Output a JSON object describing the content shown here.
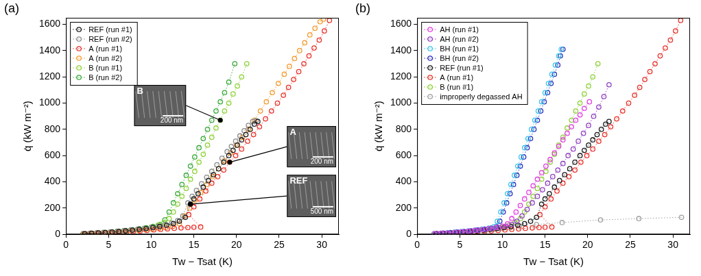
{
  "chart_data": [
    {
      "type": "line",
      "panel": "(a)",
      "x_label": "Tw − Tsat (K)",
      "y_label": "q̇ (kW m⁻²)",
      "xlim": [
        0,
        32
      ],
      "ylim": [
        0,
        1650
      ],
      "xticks": [
        0,
        5,
        10,
        15,
        20,
        25,
        30
      ],
      "yticks": [
        0,
        200,
        400,
        600,
        800,
        1000,
        1200,
        1400,
        1600
      ],
      "grid": false,
      "legend": "top-left",
      "marker": "circle",
      "line_style": "dotted",
      "series": [
        {
          "name": "REF (run #1)",
          "color": "#1a1a1a",
          "x": [
            2.2,
            3.0,
            3.8,
            4.6,
            5.4,
            6.2,
            7.0,
            7.8,
            8.6,
            9.4,
            10.2,
            11.0,
            11.8,
            12.6,
            13.3,
            14.0,
            14.6,
            15.0,
            15.5,
            16.1,
            16.7,
            17.3,
            17.9,
            18.5,
            19.1,
            19.6,
            20.1,
            20.6,
            21.1,
            21.6,
            22.1,
            22.5
          ],
          "values": [
            5,
            8,
            11,
            14,
            18,
            22,
            27,
            32,
            38,
            44,
            52,
            60,
            70,
            82,
            100,
            130,
            230,
            270,
            310,
            360,
            410,
            455,
            500,
            550,
            600,
            640,
            680,
            720,
            760,
            800,
            840,
            860
          ]
        },
        {
          "name": "REF (run #2)",
          "color": "#8c8c8c",
          "x": [
            2.0,
            2.8,
            3.6,
            4.4,
            5.2,
            6.0,
            6.8,
            7.6,
            8.4,
            9.2,
            10.0,
            10.8,
            11.6,
            12.4,
            13.1,
            13.7,
            14.3,
            14.8,
            15.3,
            15.9,
            16.5,
            17.1,
            17.7,
            18.3,
            18.9,
            19.4,
            19.9,
            20.4,
            20.9,
            21.4,
            21.9,
            22.3
          ],
          "values": [
            6,
            9,
            12,
            15,
            19,
            24,
            29,
            34,
            40,
            46,
            54,
            62,
            72,
            85,
            105,
            140,
            240,
            290,
            335,
            385,
            435,
            480,
            530,
            580,
            630,
            670,
            710,
            750,
            790,
            830,
            860,
            865
          ]
        },
        {
          "name": "A (run #1)",
          "color": "#e8322a",
          "x": [
            2.3,
            3.1,
            3.9,
            4.7,
            5.5,
            6.3,
            7.1,
            7.9,
            8.7,
            9.5,
            10.3,
            11.1,
            11.9,
            12.7,
            13.5,
            14.3,
            15.0,
            15.8,
            14.4,
            15.0,
            15.7,
            16.4,
            17.1,
            17.8,
            18.5,
            19.2,
            19.9,
            20.6,
            21.3,
            22.0,
            22.7,
            23.4,
            24.1,
            24.8,
            25.5,
            26.1,
            26.7,
            27.3,
            27.9,
            28.5,
            29.1,
            29.7,
            30.3,
            30.9
          ],
          "values": [
            5,
            7,
            9,
            11,
            13,
            16,
            19,
            22,
            26,
            30,
            34,
            38,
            42,
            46,
            49,
            52,
            54,
            56,
            150,
            210,
            270,
            330,
            390,
            440,
            490,
            550,
            600,
            650,
            710,
            760,
            820,
            880,
            940,
            1000,
            1060,
            1120,
            1180,
            1240,
            1300,
            1360,
            1420,
            1480,
            1550,
            1630
          ]
        },
        {
          "name": "A (run #2)",
          "color": "#f39a2e",
          "x": [
            2.1,
            2.9,
            3.7,
            4.5,
            5.3,
            6.1,
            6.9,
            7.7,
            8.5,
            9.3,
            10.1,
            10.9,
            11.7,
            12.5,
            13.3,
            13.9,
            14.5,
            15.1,
            15.8,
            16.5,
            17.2,
            17.9,
            18.6,
            19.3,
            20.0,
            20.7,
            21.4,
            22.1,
            22.8,
            23.5,
            24.2,
            24.9,
            25.6,
            26.2,
            26.8,
            27.4,
            28.0,
            28.6,
            29.2,
            29.8,
            30.2
          ],
          "values": [
            5,
            7,
            9,
            12,
            15,
            18,
            22,
            26,
            30,
            35,
            40,
            45,
            52,
            60,
            80,
            140,
            200,
            260,
            320,
            380,
            440,
            500,
            560,
            620,
            680,
            740,
            800,
            870,
            940,
            1010,
            1080,
            1150,
            1220,
            1280,
            1340,
            1400,
            1460,
            1520,
            1570,
            1620,
            1640
          ]
        },
        {
          "name": "B (run #1)",
          "color": "#8fd13a",
          "x": [
            2.0,
            2.8,
            3.6,
            4.4,
            5.2,
            6.0,
            6.8,
            7.6,
            8.4,
            9.2,
            10.0,
            10.8,
            11.5,
            12.1,
            12.6,
            13.1,
            13.6,
            14.1,
            14.6,
            15.1,
            15.6,
            16.1,
            16.6,
            17.1,
            17.6,
            18.1,
            18.6,
            19.1,
            19.6,
            20.1,
            20.6,
            21.2
          ],
          "values": [
            5,
            8,
            11,
            14,
            18,
            22,
            27,
            32,
            38,
            45,
            55,
            70,
            90,
            120,
            170,
            230,
            290,
            350,
            420,
            480,
            550,
            610,
            680,
            740,
            810,
            870,
            940,
            1000,
            1070,
            1130,
            1200,
            1300
          ]
        },
        {
          "name": "B (run #2)",
          "color": "#38a838",
          "x": [
            2.2,
            3.0,
            3.8,
            4.6,
            5.4,
            6.2,
            7.0,
            7.8,
            8.6,
            9.4,
            10.2,
            11.0,
            11.6,
            12.1,
            12.6,
            13.1,
            13.6,
            14.1,
            14.6,
            15.1,
            15.6,
            16.1,
            16.6,
            17.1,
            17.6,
            18.1,
            18.6,
            19.1,
            19.8
          ],
          "values": [
            5,
            8,
            11,
            15,
            19,
            24,
            29,
            35,
            42,
            50,
            60,
            75,
            110,
            170,
            240,
            310,
            380,
            450,
            520,
            590,
            660,
            730,
            800,
            870,
            940,
            1010,
            1080,
            1160,
            1300
          ]
        }
      ],
      "annotations": [
        {
          "label": "B",
          "scale_bar": "200 nm",
          "x": 18.1,
          "y": 870
        },
        {
          "label": "A",
          "scale_bar": "200 nm",
          "x": 19.2,
          "y": 550
        },
        {
          "label": "REF",
          "scale_bar": "500 nm",
          "x": 14.6,
          "y": 230
        }
      ]
    },
    {
      "type": "line",
      "panel": "(b)",
      "x_label": "Tw − Tsat (K)",
      "y_label": "q̇ (kW m⁻²)",
      "xlim": [
        0,
        32
      ],
      "ylim": [
        0,
        1650
      ],
      "xticks": [
        0,
        5,
        10,
        15,
        20,
        25,
        30
      ],
      "yticks": [
        0,
        200,
        400,
        600,
        800,
        1000,
        1200,
        1400,
        1600
      ],
      "grid": false,
      "legend": "top-left",
      "marker": "circle",
      "line_style": "dotted",
      "series": [
        {
          "name": "AH (run #1)",
          "color": "#e040e0",
          "x": [
            2.0,
            2.8,
            3.6,
            4.4,
            5.2,
            6.0,
            6.8,
            7.6,
            8.4,
            9.2,
            10.0,
            10.6,
            11.1,
            11.6,
            12.1,
            12.6,
            13.1,
            13.6,
            14.1,
            14.6,
            15.1,
            15.6,
            16.1,
            16.6,
            17.1,
            17.6,
            18.1,
            18.6,
            19.1,
            19.6,
            20.2
          ],
          "values": [
            5,
            8,
            11,
            15,
            19,
            24,
            30,
            36,
            44,
            52,
            62,
            80,
            120,
            170,
            220,
            270,
            320,
            370,
            420,
            470,
            520,
            570,
            620,
            670,
            720,
            770,
            820,
            870,
            910,
            960,
            1010
          ]
        },
        {
          "name": "AH (run #2)",
          "color": "#9040c0",
          "x": [
            2.4,
            3.2,
            4.0,
            4.8,
            5.6,
            6.4,
            7.2,
            8.0,
            8.8,
            9.6,
            10.4,
            11.1,
            11.7,
            12.3,
            12.9,
            13.5,
            14.1,
            14.7,
            15.3,
            15.9,
            16.5,
            17.1,
            17.7,
            18.3,
            18.9,
            19.5,
            20.1,
            20.7,
            21.3,
            21.9,
            22.5
          ],
          "values": [
            5,
            8,
            11,
            15,
            19,
            24,
            30,
            36,
            44,
            52,
            62,
            75,
            100,
            140,
            190,
            240,
            290,
            340,
            390,
            440,
            490,
            540,
            600,
            650,
            710,
            770,
            830,
            900,
            970,
            1050,
            1140
          ]
        },
        {
          "name": "BH (run #1)",
          "color": "#3cc4e8",
          "x": [
            2.0,
            2.8,
            3.6,
            4.4,
            5.2,
            6.0,
            6.8,
            7.6,
            8.4,
            9.0,
            9.4,
            9.8,
            10.2,
            10.6,
            11.0,
            11.4,
            11.8,
            12.2,
            12.6,
            13.0,
            13.4,
            13.8,
            14.2,
            14.6,
            15.0,
            15.4,
            15.8,
            16.2,
            16.6,
            16.9
          ],
          "values": [
            5,
            9,
            13,
            17,
            22,
            27,
            33,
            40,
            48,
            58,
            100,
            170,
            240,
            310,
            380,
            450,
            520,
            590,
            660,
            730,
            800,
            870,
            940,
            1010,
            1080,
            1150,
            1220,
            1290,
            1360,
            1410
          ]
        },
        {
          "name": "BH (run #2)",
          "color": "#2e2ec0",
          "x": [
            2.3,
            3.1,
            3.9,
            4.7,
            5.5,
            6.3,
            7.1,
            7.9,
            8.7,
            9.3,
            9.7,
            10.1,
            10.5,
            10.9,
            11.3,
            11.7,
            12.1,
            12.5,
            12.9,
            13.3,
            13.7,
            14.1,
            14.5,
            14.9,
            15.3,
            15.7,
            16.1,
            16.5,
            16.8,
            17.1
          ],
          "values": [
            5,
            9,
            13,
            17,
            22,
            27,
            33,
            40,
            48,
            58,
            100,
            170,
            240,
            310,
            380,
            450,
            520,
            590,
            660,
            730,
            800,
            870,
            940,
            1010,
            1080,
            1150,
            1220,
            1290,
            1360,
            1410
          ]
        },
        {
          "name": "REF (run #1)",
          "color": "#1a1a1a",
          "x": [
            2.2,
            3.0,
            3.8,
            4.6,
            5.4,
            6.2,
            7.0,
            7.8,
            8.6,
            9.4,
            10.2,
            11.0,
            11.8,
            12.6,
            13.3,
            14.0,
            14.6,
            15.0,
            15.5,
            16.1,
            16.7,
            17.3,
            17.9,
            18.5,
            19.1,
            19.6,
            20.1,
            20.6,
            21.1,
            21.6,
            22.1,
            22.5
          ],
          "values": [
            5,
            8,
            11,
            14,
            18,
            22,
            27,
            32,
            38,
            44,
            52,
            60,
            70,
            82,
            100,
            130,
            230,
            270,
            310,
            360,
            410,
            455,
            500,
            550,
            600,
            640,
            680,
            720,
            760,
            800,
            840,
            860
          ]
        },
        {
          "name": "A (run #1)",
          "color": "#e8322a",
          "x": [
            2.3,
            3.1,
            3.9,
            4.7,
            5.5,
            6.3,
            7.1,
            7.9,
            8.7,
            9.5,
            10.3,
            11.1,
            11.9,
            12.7,
            13.5,
            14.3,
            15.0,
            15.8,
            14.4,
            15.0,
            15.7,
            16.4,
            17.1,
            17.8,
            18.5,
            19.2,
            19.9,
            20.6,
            21.3,
            22.0,
            22.7,
            23.4,
            24.1,
            24.8,
            25.5,
            26.1,
            26.7,
            27.3,
            27.9,
            28.5,
            29.1,
            29.7,
            30.3,
            30.9
          ],
          "values": [
            5,
            7,
            9,
            11,
            13,
            16,
            19,
            22,
            26,
            30,
            34,
            38,
            42,
            46,
            49,
            52,
            54,
            56,
            150,
            210,
            270,
            330,
            390,
            440,
            490,
            550,
            600,
            650,
            710,
            760,
            820,
            880,
            940,
            1000,
            1060,
            1120,
            1180,
            1240,
            1300,
            1360,
            1420,
            1480,
            1550,
            1630
          ]
        },
        {
          "name": "B (run #1)",
          "color": "#8fd13a",
          "x": [
            2.0,
            2.8,
            3.6,
            4.4,
            5.2,
            6.0,
            6.8,
            7.6,
            8.4,
            9.2,
            10.0,
            10.8,
            11.5,
            12.1,
            12.6,
            13.1,
            13.6,
            14.1,
            14.6,
            15.1,
            15.6,
            16.1,
            16.6,
            17.1,
            17.6,
            18.1,
            18.6,
            19.1,
            19.6,
            20.1,
            20.6,
            21.2
          ],
          "values": [
            5,
            8,
            11,
            14,
            18,
            22,
            27,
            32,
            38,
            45,
            55,
            70,
            90,
            120,
            170,
            230,
            290,
            350,
            420,
            480,
            550,
            610,
            680,
            740,
            810,
            870,
            940,
            1000,
            1070,
            1130,
            1200,
            1300
          ]
        },
        {
          "name": "improperly degassed AH",
          "color": "#a0a0a0",
          "x": [
            2.0,
            3.0,
            4.0,
            5.0,
            6.0,
            7.0,
            8.0,
            9.0,
            10.0,
            11.0,
            12.0,
            14.0,
            17.0,
            21.5,
            26.0,
            31.0
          ],
          "values": [
            5,
            8,
            11,
            15,
            19,
            24,
            30,
            38,
            46,
            55,
            65,
            75,
            90,
            110,
            120,
            130
          ]
        }
      ]
    }
  ]
}
